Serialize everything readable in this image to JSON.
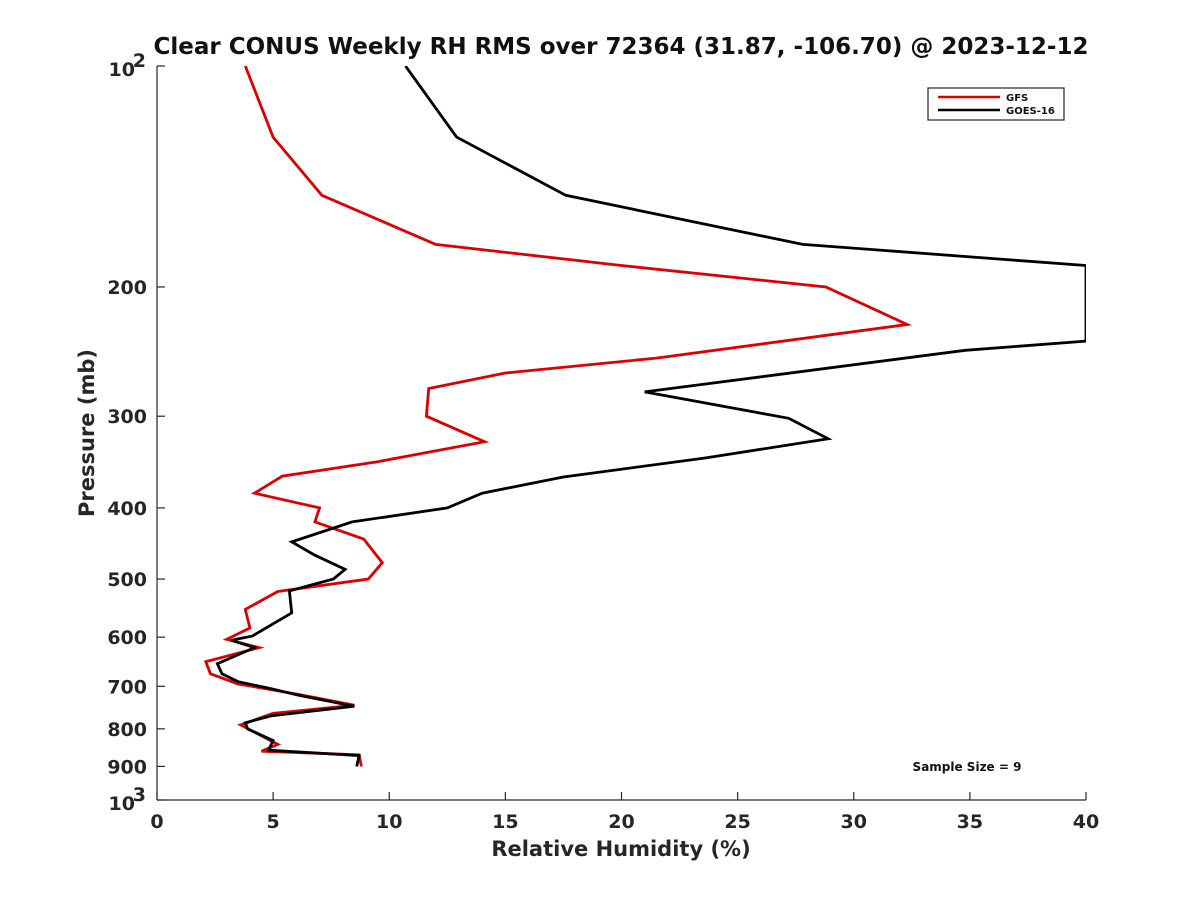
{
  "chart_data": {
    "type": "line",
    "title": "Clear CONUS Weekly RH RMS over 72364 (31.87, -106.70) @ 2023-12-12",
    "xlabel": "Relative Humidity (%)",
    "ylabel": "Pressure (mb)",
    "xlim": [
      0,
      40
    ],
    "ylim": [
      100,
      1000
    ],
    "yscale": "log",
    "y_reversed": true,
    "x_ticks": [
      "0",
      "5",
      "10",
      "15",
      "20",
      "25",
      "30",
      "35",
      "40"
    ],
    "x_tick_values": [
      0,
      5,
      10,
      15,
      20,
      25,
      30,
      35,
      40
    ],
    "y_ticks": [
      {
        "value": 100,
        "base": "10",
        "exp": "2"
      },
      {
        "value": 200,
        "label": "200"
      },
      {
        "value": 300,
        "label": "300"
      },
      {
        "value": 400,
        "label": "400"
      },
      {
        "value": 500,
        "label": "500"
      },
      {
        "value": 600,
        "label": "600"
      },
      {
        "value": 700,
        "label": "700"
      },
      {
        "value": 800,
        "label": "800"
      },
      {
        "value": 900,
        "label": "900"
      },
      {
        "value": 1000,
        "base": "10",
        "exp": "3"
      }
    ],
    "grid": false,
    "legend_position": "top-right",
    "annotation": "Sample Size = 9",
    "series": [
      {
        "name": "GFS",
        "color": "#dd0000",
        "points": [
          [
            3.8,
            100
          ],
          [
            5.0,
            125
          ],
          [
            7.1,
            150
          ],
          [
            12.0,
            175
          ],
          [
            20.0,
            187
          ],
          [
            28.8,
            200
          ],
          [
            32.3,
            225
          ],
          [
            21.5,
            250
          ],
          [
            15.0,
            262
          ],
          [
            11.7,
            275
          ],
          [
            11.6,
            300
          ],
          [
            14.1,
            325
          ],
          [
            9.5,
            346
          ],
          [
            5.4,
            362
          ],
          [
            4.2,
            382
          ],
          [
            7.0,
            400
          ],
          [
            6.8,
            418
          ],
          [
            8.9,
            441
          ],
          [
            9.7,
            475
          ],
          [
            9.1,
            500
          ],
          [
            5.2,
            520
          ],
          [
            3.8,
            550
          ],
          [
            4.0,
            583
          ],
          [
            3.0,
            604
          ],
          [
            4.4,
            620
          ],
          [
            2.1,
            648
          ],
          [
            2.3,
            673
          ],
          [
            3.5,
            695
          ],
          [
            6.0,
            717
          ],
          [
            8.5,
            743
          ],
          [
            5.0,
            762
          ],
          [
            3.6,
            790
          ],
          [
            5.2,
            840
          ],
          [
            4.5,
            858
          ],
          [
            8.7,
            868
          ],
          [
            8.8,
            900
          ]
        ]
      },
      {
        "name": "GOES-16",
        "color": "#000000",
        "points": [
          [
            10.7,
            100
          ],
          [
            12.9,
            125
          ],
          [
            17.6,
            150
          ],
          [
            27.8,
            175
          ],
          [
            40.0,
            187
          ],
          [
            40.0,
            237
          ],
          [
            34.8,
            244
          ],
          [
            21.0,
            278
          ],
          [
            27.2,
            302
          ],
          [
            28.9,
            322
          ],
          [
            23.6,
            342
          ],
          [
            17.5,
            363
          ],
          [
            14.0,
            382
          ],
          [
            12.5,
            400
          ],
          [
            8.4,
            418
          ],
          [
            5.8,
            445
          ],
          [
            6.8,
            464
          ],
          [
            8.1,
            485
          ],
          [
            7.6,
            500
          ],
          [
            5.7,
            519
          ],
          [
            5.8,
            556
          ],
          [
            4.1,
            598
          ],
          [
            3.2,
            606
          ],
          [
            4.2,
            620
          ],
          [
            2.6,
            652
          ],
          [
            2.8,
            673
          ],
          [
            3.5,
            690
          ],
          [
            4.9,
            705
          ],
          [
            6.1,
            720
          ],
          [
            8.5,
            745
          ],
          [
            4.9,
            768
          ],
          [
            3.8,
            785
          ],
          [
            3.9,
            800
          ],
          [
            5.0,
            830
          ],
          [
            4.8,
            855
          ],
          [
            8.7,
            870
          ],
          [
            8.6,
            900
          ]
        ]
      }
    ]
  }
}
